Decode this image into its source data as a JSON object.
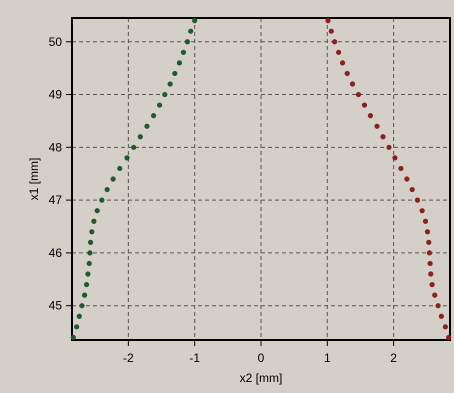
{
  "chart_data": {
    "type": "scatter",
    "xlabel": "x2 [mm]",
    "ylabel": "x1 [mm]",
    "xlim": [
      -2.85,
      2.85
    ],
    "ylim": [
      44.35,
      50.45
    ],
    "xticks": [
      -2,
      -1,
      0,
      1,
      2
    ],
    "yticks": [
      45,
      46,
      47,
      48,
      49,
      50
    ],
    "grid": true,
    "series": [
      {
        "color": "#1f5a2a",
        "points": [
          [
            -2.83,
            44.4
          ],
          [
            -2.78,
            44.6
          ],
          [
            -2.74,
            44.8
          ],
          [
            -2.7,
            45.0
          ],
          [
            -2.66,
            45.2
          ],
          [
            -2.63,
            45.4
          ],
          [
            -2.61,
            45.6
          ],
          [
            -2.59,
            45.8
          ],
          [
            -2.58,
            46.0
          ],
          [
            -2.57,
            46.2
          ],
          [
            -2.55,
            46.4
          ],
          [
            -2.52,
            46.6
          ],
          [
            -2.47,
            46.8
          ],
          [
            -2.4,
            47.0
          ],
          [
            -2.32,
            47.2
          ],
          [
            -2.23,
            47.4
          ],
          [
            -2.13,
            47.6
          ],
          [
            -2.02,
            47.8
          ],
          [
            -1.92,
            48.0
          ],
          [
            -1.82,
            48.2
          ],
          [
            -1.72,
            48.4
          ],
          [
            -1.62,
            48.6
          ],
          [
            -1.53,
            48.8
          ],
          [
            -1.45,
            49.0
          ],
          [
            -1.37,
            49.2
          ],
          [
            -1.3,
            49.4
          ],
          [
            -1.23,
            49.6
          ],
          [
            -1.17,
            49.8
          ],
          [
            -1.11,
            50.0
          ],
          [
            -1.06,
            50.2
          ],
          [
            -1.0,
            50.4
          ]
        ]
      },
      {
        "color": "#8a2020",
        "points": [
          [
            2.83,
            44.4
          ],
          [
            2.78,
            44.6
          ],
          [
            2.72,
            44.8
          ],
          [
            2.67,
            45.0
          ],
          [
            2.62,
            45.2
          ],
          [
            2.58,
            45.4
          ],
          [
            2.56,
            45.6
          ],
          [
            2.55,
            45.8
          ],
          [
            2.54,
            46.0
          ],
          [
            2.53,
            46.2
          ],
          [
            2.51,
            46.4
          ],
          [
            2.48,
            46.6
          ],
          [
            2.43,
            46.8
          ],
          [
            2.36,
            47.0
          ],
          [
            2.28,
            47.2
          ],
          [
            2.2,
            47.4
          ],
          [
            2.11,
            47.6
          ],
          [
            2.02,
            47.8
          ],
          [
            1.93,
            48.0
          ],
          [
            1.84,
            48.2
          ],
          [
            1.75,
            48.4
          ],
          [
            1.65,
            48.6
          ],
          [
            1.56,
            48.8
          ],
          [
            1.47,
            49.0
          ],
          [
            1.38,
            49.2
          ],
          [
            1.3,
            49.4
          ],
          [
            1.23,
            49.6
          ],
          [
            1.17,
            49.8
          ],
          [
            1.11,
            50.0
          ],
          [
            1.06,
            50.2
          ],
          [
            1.01,
            50.4
          ]
        ]
      }
    ]
  }
}
